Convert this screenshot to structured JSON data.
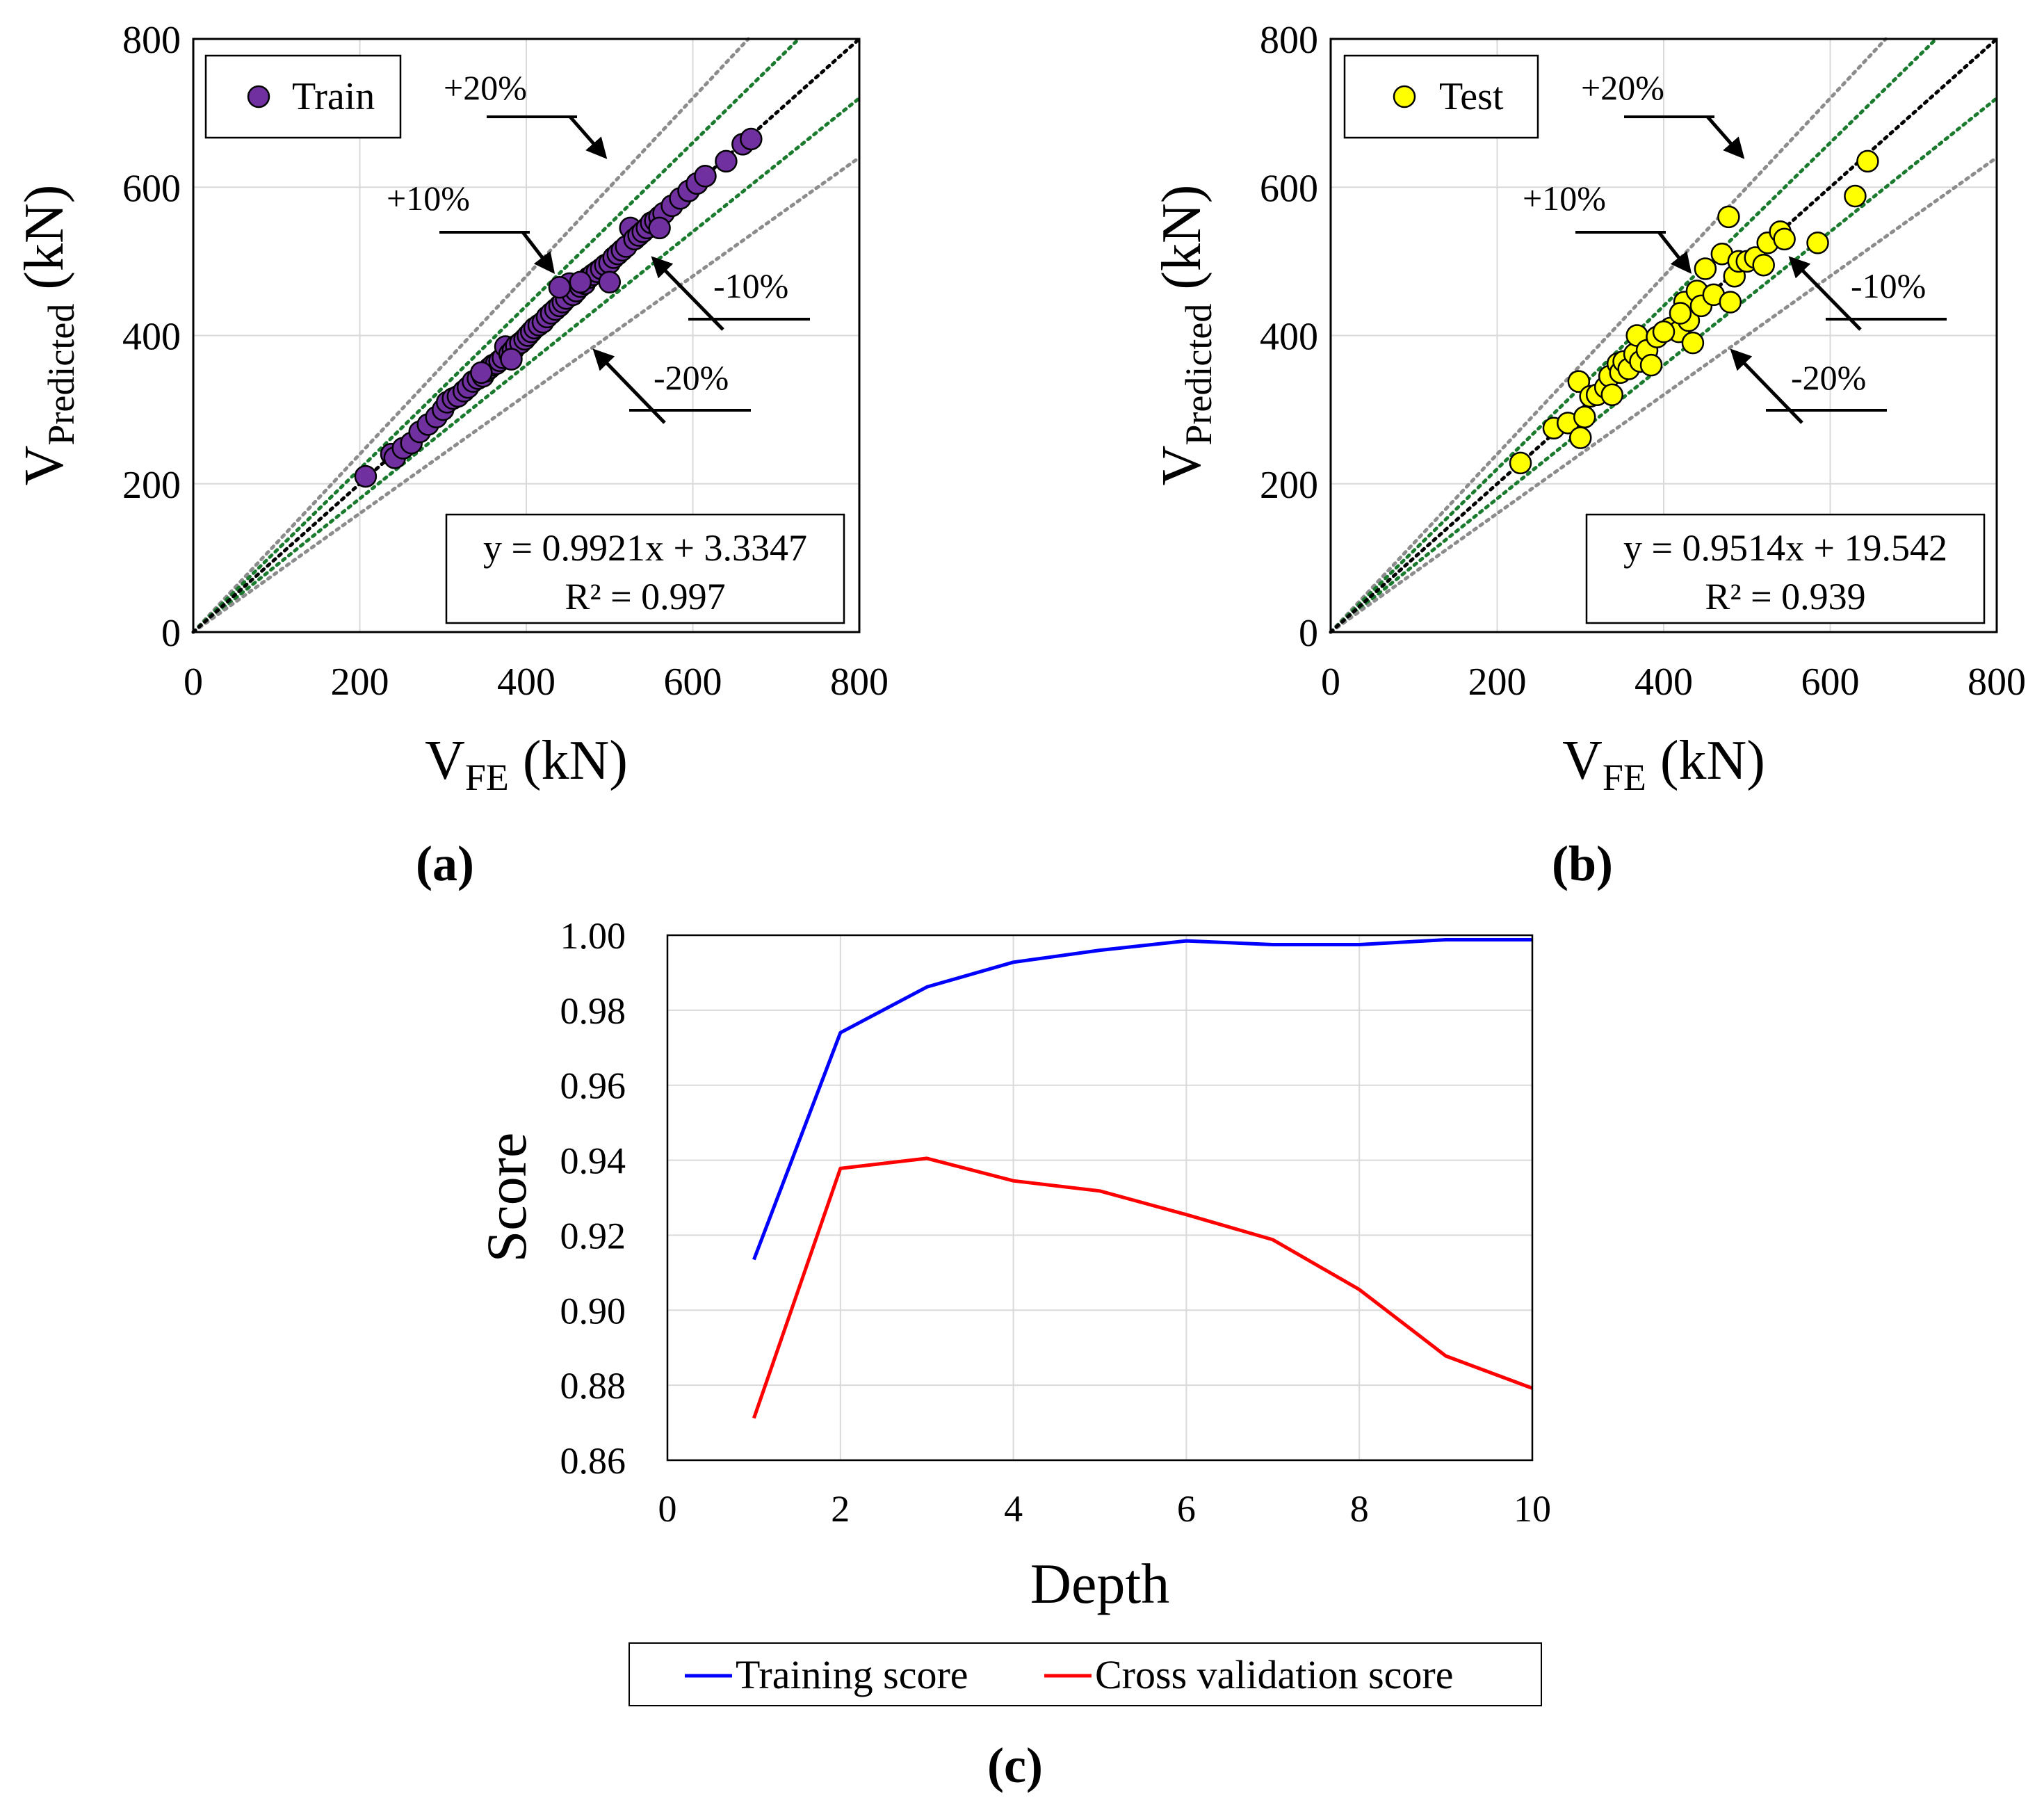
{
  "chart_data": [
    {
      "id": "a",
      "type": "scatter",
      "panel_label": "(a)",
      "xlabel_main": "V",
      "xlabel_sub": "FE",
      "xlabel_unit": " (kN)",
      "ylabel_main": "V",
      "ylabel_sub": "Predicted",
      "ylabel_unit": " (kN)",
      "xlim": [
        0,
        800
      ],
      "ylim": [
        0,
        800
      ],
      "xticks": [
        "0",
        "200",
        "400",
        "600",
        "800"
      ],
      "yticks": [
        "0",
        "200",
        "400",
        "600",
        "800"
      ],
      "grid": true,
      "legend": "Train",
      "legend_position": "top-left",
      "marker_color": "#7030a0",
      "equation": "y = 0.9921x + 3.3347",
      "r2": "R² = 0.997",
      "bands": [
        {
          "label": "+20%",
          "factor": 1.2,
          "color": "#8c8c8c"
        },
        {
          "label": "+10%",
          "factor": 1.1,
          "color": "#1a7a2e"
        },
        {
          "label": "-10%",
          "factor": 0.9,
          "color": "#1a7a2e"
        },
        {
          "label": "-20%",
          "factor": 0.8,
          "color": "#8c8c8c"
        }
      ],
      "points": [
        [
          207,
          210
        ],
        [
          238,
          240
        ],
        [
          242,
          235
        ],
        [
          252,
          248
        ],
        [
          262,
          255
        ],
        [
          272,
          270
        ],
        [
          282,
          280
        ],
        [
          292,
          290
        ],
        [
          300,
          300
        ],
        [
          305,
          310
        ],
        [
          312,
          315
        ],
        [
          318,
          318
        ],
        [
          325,
          325
        ],
        [
          330,
          330
        ],
        [
          336,
          338
        ],
        [
          342,
          342
        ],
        [
          348,
          345
        ],
        [
          352,
          352
        ],
        [
          356,
          356
        ],
        [
          360,
          360
        ],
        [
          364,
          362
        ],
        [
          368,
          366
        ],
        [
          372,
          370
        ],
        [
          375,
          385
        ],
        [
          380,
          375
        ],
        [
          384,
          380
        ],
        [
          388,
          386
        ],
        [
          393,
          390
        ],
        [
          398,
          395
        ],
        [
          402,
          400
        ],
        [
          406,
          405
        ],
        [
          410,
          410
        ],
        [
          415,
          414
        ],
        [
          420,
          418
        ],
        [
          425,
          425
        ],
        [
          430,
          430
        ],
        [
          435,
          435
        ],
        [
          440,
          440
        ],
        [
          444,
          445
        ],
        [
          448,
          450
        ],
        [
          452,
          470
        ],
        [
          456,
          455
        ],
        [
          460,
          460
        ],
        [
          465,
          466
        ],
        [
          470,
          470
        ],
        [
          475,
          478
        ],
        [
          480,
          482
        ],
        [
          485,
          486
        ],
        [
          490,
          490
        ],
        [
          495,
          495
        ],
        [
          500,
          498
        ],
        [
          505,
          505
        ],
        [
          510,
          510
        ],
        [
          515,
          515
        ],
        [
          520,
          520
        ],
        [
          525,
          545
        ],
        [
          530,
          530
        ],
        [
          535,
          535
        ],
        [
          540,
          540
        ],
        [
          545,
          545
        ],
        [
          550,
          552
        ],
        [
          555,
          555
        ],
        [
          560,
          560
        ],
        [
          565,
          565
        ],
        [
          575,
          575
        ],
        [
          585,
          585
        ],
        [
          595,
          595
        ],
        [
          605,
          605
        ],
        [
          615,
          615
        ],
        [
          640,
          635
        ],
        [
          660,
          658
        ],
        [
          670,
          665
        ],
        [
          440,
          465
        ],
        [
          465,
          472
        ],
        [
          500,
          472
        ],
        [
          560,
          545
        ],
        [
          382,
          368
        ],
        [
          346,
          350
        ]
      ]
    },
    {
      "id": "b",
      "type": "scatter",
      "panel_label": "(b)",
      "xlabel_main": "V",
      "xlabel_sub": "FE",
      "xlabel_unit": " (kN)",
      "ylabel_main": "V",
      "ylabel_sub": "Predicted",
      "ylabel_unit": " (kN)",
      "xlim": [
        0,
        800
      ],
      "ylim": [
        0,
        800
      ],
      "xticks": [
        "0",
        "200",
        "400",
        "600",
        "800"
      ],
      "yticks": [
        "0",
        "200",
        "400",
        "600",
        "800"
      ],
      "grid": true,
      "legend": "Test",
      "legend_position": "top-left",
      "marker_color": "#ffff00",
      "equation": "y = 0.9514x + 19.542",
      "r2": "R² = 0.939",
      "bands": [
        {
          "label": "+20%",
          "factor": 1.2,
          "color": "#8c8c8c"
        },
        {
          "label": "+10%",
          "factor": 1.1,
          "color": "#1a7a2e"
        },
        {
          "label": "-10%",
          "factor": 0.9,
          "color": "#1a7a2e"
        },
        {
          "label": "-20%",
          "factor": 0.8,
          "color": "#8c8c8c"
        }
      ],
      "points": [
        [
          228,
          228
        ],
        [
          268,
          275
        ],
        [
          285,
          282
        ],
        [
          298,
          338
        ],
        [
          300,
          262
        ],
        [
          305,
          290
        ],
        [
          312,
          318
        ],
        [
          320,
          320
        ],
        [
          330,
          330
        ],
        [
          335,
          345
        ],
        [
          338,
          320
        ],
        [
          345,
          362
        ],
        [
          348,
          350
        ],
        [
          352,
          365
        ],
        [
          358,
          355
        ],
        [
          365,
          375
        ],
        [
          368,
          400
        ],
        [
          372,
          365
        ],
        [
          380,
          380
        ],
        [
          385,
          360
        ],
        [
          392,
          398
        ],
        [
          408,
          410
        ],
        [
          418,
          405
        ],
        [
          425,
          445
        ],
        [
          430,
          420
        ],
        [
          435,
          390
        ],
        [
          440,
          460
        ],
        [
          445,
          440
        ],
        [
          450,
          490
        ],
        [
          460,
          455
        ],
        [
          470,
          510
        ],
        [
          478,
          560
        ],
        [
          480,
          445
        ],
        [
          485,
          480
        ],
        [
          490,
          500
        ],
        [
          500,
          500
        ],
        [
          510,
          505
        ],
        [
          520,
          495
        ],
        [
          525,
          525
        ],
        [
          540,
          540
        ],
        [
          545,
          530
        ],
        [
          585,
          525
        ],
        [
          630,
          588
        ],
        [
          645,
          635
        ],
        [
          420,
          430
        ],
        [
          400,
          405
        ]
      ]
    },
    {
      "id": "c",
      "type": "line",
      "panel_label": "(c)",
      "xlabel": "Depth",
      "ylabel": "Score",
      "xlim": [
        0,
        10
      ],
      "ylim": [
        0.86,
        1.0
      ],
      "xticks": [
        "0",
        "2",
        "4",
        "6",
        "8",
        "10"
      ],
      "yticks": [
        "0.86",
        "0.88",
        "0.90",
        "0.92",
        "0.94",
        "0.96",
        "0.98",
        "1.00"
      ],
      "grid": true,
      "legend_position": "bottom",
      "x": [
        1,
        2,
        3,
        4,
        5,
        6,
        7,
        8,
        9,
        10
      ],
      "series": [
        {
          "name": "Training score",
          "color": "#0000ff",
          "values": [
            0.9135,
            0.974,
            0.9862,
            0.9928,
            0.996,
            0.9985,
            0.9975,
            0.9975,
            0.9988,
            0.9988
          ]
        },
        {
          "name": "Cross validation score",
          "color": "#ff0000",
          "values": [
            0.8712,
            0.9378,
            0.9405,
            0.9345,
            0.9318,
            0.9255,
            0.9188,
            0.9055,
            0.8878,
            0.8792
          ]
        }
      ]
    }
  ]
}
